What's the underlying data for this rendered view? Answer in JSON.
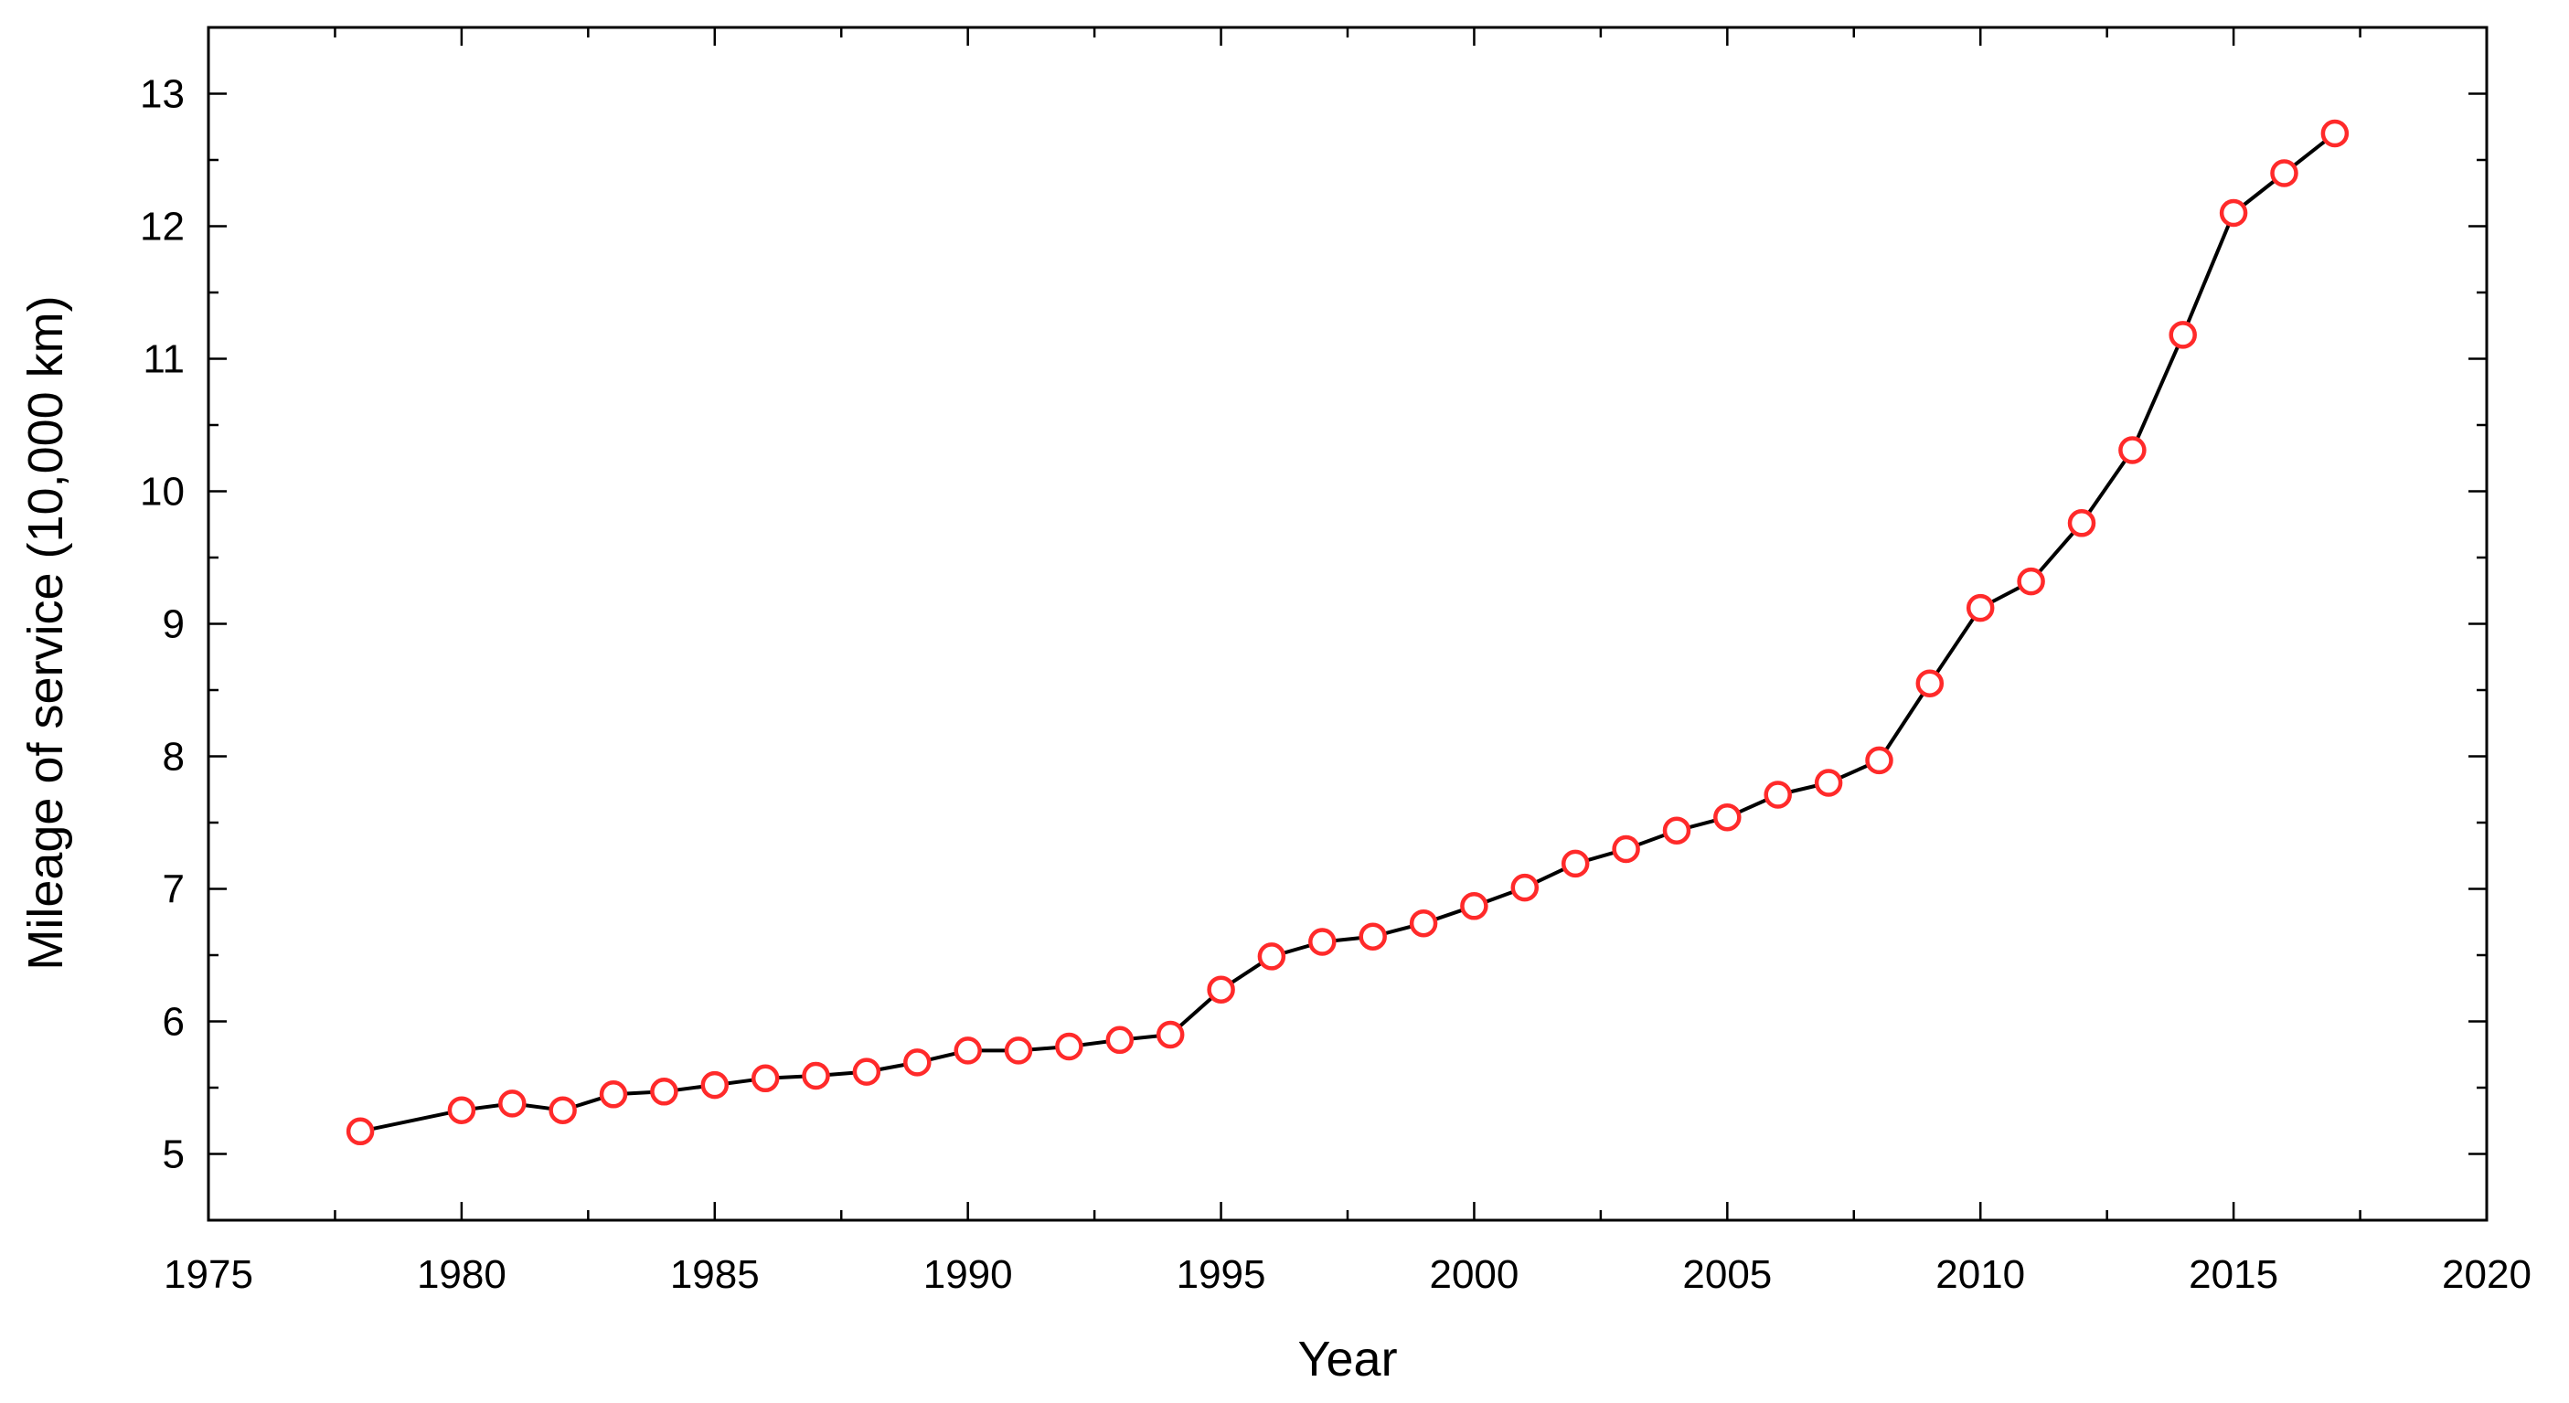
{
  "chart_data": {
    "type": "line",
    "title": "",
    "xlabel": "Year",
    "ylabel": "Mileage of service (10,000 km)",
    "xlim": [
      1975,
      2020
    ],
    "ylim": [
      4.5,
      13.5
    ],
    "xticks": [
      1975,
      1980,
      1985,
      1990,
      1995,
      2000,
      2005,
      2010,
      2015,
      2020
    ],
    "yticks": [
      5,
      6,
      7,
      8,
      9,
      10,
      11,
      12,
      13
    ],
    "grid": false,
    "legend": "none",
    "colors": {
      "line": "#000000",
      "marker_edge": "#ff2a2a",
      "marker_fill": "#ffffff"
    },
    "series": [
      {
        "name": "Mileage of service",
        "x": [
          1978,
          1980,
          1981,
          1982,
          1983,
          1984,
          1985,
          1986,
          1987,
          1988,
          1989,
          1990,
          1991,
          1992,
          1993,
          1994,
          1995,
          1996,
          1997,
          1998,
          1999,
          2000,
          2001,
          2002,
          2003,
          2004,
          2005,
          2006,
          2007,
          2008,
          2009,
          2010,
          2011,
          2012,
          2013,
          2014,
          2015,
          2016,
          2017
        ],
        "y": [
          5.17,
          5.33,
          5.38,
          5.33,
          5.45,
          5.47,
          5.52,
          5.57,
          5.59,
          5.62,
          5.69,
          5.78,
          5.78,
          5.81,
          5.86,
          5.9,
          6.24,
          6.49,
          6.6,
          6.64,
          6.74,
          6.87,
          7.01,
          7.19,
          7.3,
          7.44,
          7.54,
          7.71,
          7.8,
          7.97,
          8.55,
          9.12,
          9.32,
          9.76,
          10.31,
          11.18,
          12.1,
          12.4,
          12.7
        ]
      }
    ]
  }
}
